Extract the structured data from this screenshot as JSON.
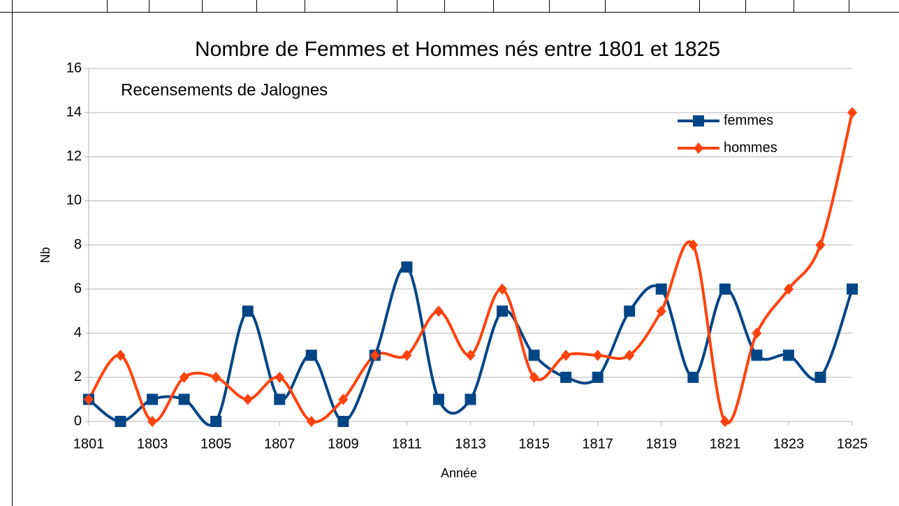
{
  "chart_data": {
    "type": "line",
    "title": "Nombre de Femmes et Hommes nés entre 1801 et 1825",
    "annotation": "Recensements de Jalognes",
    "xlabel": "Année",
    "ylabel": "Nb",
    "x": [
      1801,
      1802,
      1803,
      1804,
      1805,
      1806,
      1807,
      1808,
      1809,
      1810,
      1811,
      1812,
      1813,
      1814,
      1815,
      1816,
      1817,
      1818,
      1819,
      1820,
      1821,
      1822,
      1823,
      1824,
      1825
    ],
    "series": [
      {
        "name": "femmes",
        "color": "#004586",
        "marker": "square",
        "values": [
          1,
          0,
          1,
          1,
          0,
          5,
          1,
          3,
          0,
          3,
          7,
          1,
          1,
          5,
          3,
          2,
          2,
          5,
          6,
          2,
          6,
          3,
          3,
          2,
          6
        ]
      },
      {
        "name": "hommes",
        "color": "#ff420e",
        "marker": "diamond",
        "values": [
          1,
          3,
          0,
          2,
          2,
          1,
          2,
          0,
          1,
          3,
          3,
          5,
          3,
          6,
          2,
          3,
          3,
          3,
          5,
          8,
          0,
          4,
          6,
          8,
          14
        ]
      }
    ],
    "xlim": [
      1801,
      1825
    ],
    "xticks": [
      1801,
      1803,
      1805,
      1807,
      1809,
      1811,
      1813,
      1815,
      1817,
      1819,
      1821,
      1823,
      1825
    ],
    "ylim": [
      0,
      16
    ],
    "yticks": [
      0,
      2,
      4,
      6,
      8,
      10,
      12,
      14,
      16
    ],
    "grid": true,
    "smooth": true
  }
}
